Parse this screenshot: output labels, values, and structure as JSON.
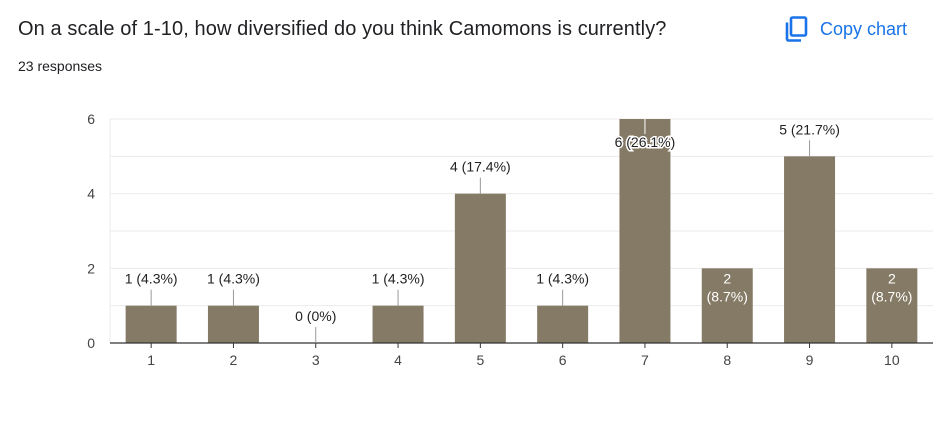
{
  "header": {
    "question": "On a scale of 1-10, how diversified do you think Camomons is currently?",
    "responses": "23 responses",
    "copy_label": "Copy chart"
  },
  "icons": {
    "copy": "copy-icon"
  },
  "colors": {
    "bar": "#857a66",
    "accent": "#1a73e8",
    "text": "#202124",
    "grid": "#ebebeb",
    "axis": "#333333"
  },
  "chart_data": {
    "type": "bar",
    "title": "",
    "xlabel": "",
    "ylabel": "",
    "categories": [
      "1",
      "2",
      "3",
      "4",
      "5",
      "6",
      "7",
      "8",
      "9",
      "10"
    ],
    "values": [
      1,
      1,
      0,
      1,
      4,
      1,
      6,
      2,
      5,
      2
    ],
    "data_labels": [
      "1 (4.3%)",
      "1 (4.3%)",
      "0 (0%)",
      "1 (4.3%)",
      "4 (17.4%)",
      "1 (4.3%)",
      "6 (26.1%)",
      "2 (8.7%)",
      "5 (21.7%)",
      "2 (8.7%)"
    ],
    "ylim": [
      0,
      6
    ],
    "yticks": [
      0,
      2,
      4,
      6
    ],
    "grid": true,
    "legend": "none"
  }
}
